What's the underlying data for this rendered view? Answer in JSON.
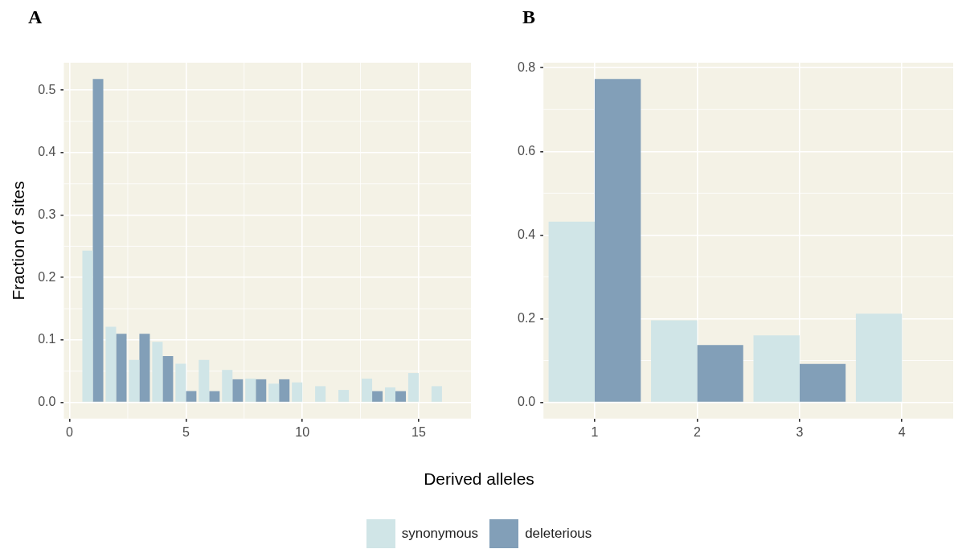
{
  "chart_data": [
    {
      "type": "bar",
      "title": "A",
      "xlabel": "Derived alleles",
      "ylabel": "Fraction of sites",
      "x": [
        1,
        2,
        3,
        4,
        5,
        6,
        7,
        8,
        9,
        10,
        11,
        12,
        13,
        14,
        15,
        16
      ],
      "xlim": [
        -0.245,
        17.245
      ],
      "xticks": [
        0,
        5,
        10,
        15
      ],
      "ylim": [
        -0.026,
        0.544
      ],
      "yticks": [
        {
          "value": 0,
          "label": "0.0"
        },
        0.1,
        0.2,
        0.3,
        0.4,
        0.5
      ],
      "grid": true,
      "legend": "bottom",
      "series": [
        {
          "name": "synonymous",
          "color": "#d0e5e7",
          "values": [
            0.243,
            0.121,
            0.068,
            0.097,
            0.062,
            0.068,
            0.052,
            0.038,
            0.03,
            0.032,
            0.026,
            0.02,
            0.038,
            0.024,
            0.047,
            0.026
          ]
        },
        {
          "name": "deleterious",
          "color": "#829fb8",
          "values": [
            0.518,
            0.11,
            0.11,
            0.074,
            0.018,
            0.018,
            0.037,
            0.037,
            0.037,
            0,
            0,
            0,
            0.018,
            0.018,
            0,
            0
          ]
        }
      ]
    },
    {
      "type": "bar",
      "title": "B",
      "categories": [
        "1",
        "2",
        "3",
        "4"
      ],
      "ylim": [
        -0.039,
        0.812
      ],
      "yticks": [
        {
          "value": 0,
          "label": "0.0"
        },
        0.2,
        0.4,
        0.6,
        0.8
      ],
      "grid": true,
      "series": [
        {
          "name": "synonymous",
          "color": "#d0e5e7",
          "values": [
            0.432,
            0.196,
            0.16,
            0.212
          ]
        },
        {
          "name": "deleterious",
          "color": "#829fb8",
          "values": [
            0.773,
            0.137,
            0.092,
            0
          ]
        }
      ]
    }
  ]
}
